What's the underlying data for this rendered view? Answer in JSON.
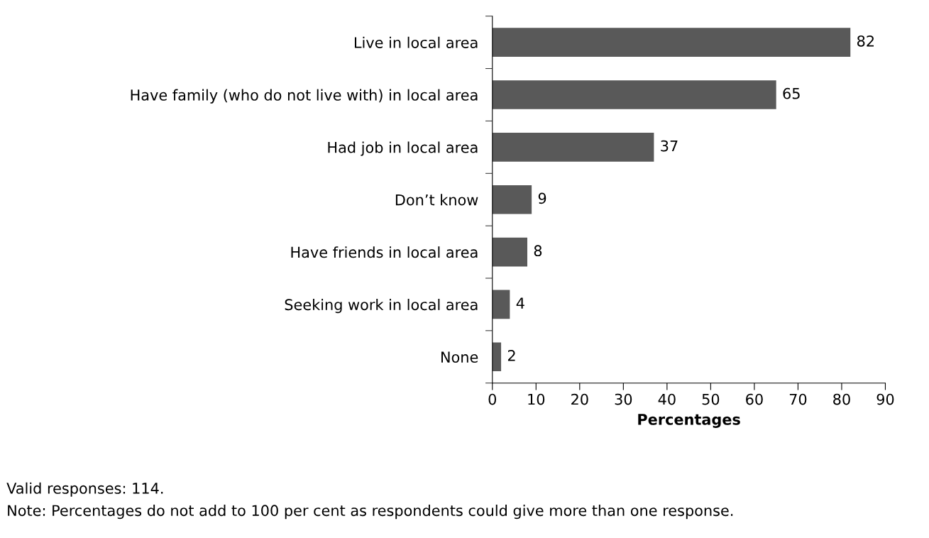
{
  "chart_data": {
    "type": "bar",
    "orientation": "horizontal",
    "categories": [
      "Live in local area",
      "Have family (who do not live with) in local area",
      "Had job in local area",
      "Don’t know",
      "Have friends in local area",
      "Seeking work in local area",
      "None"
    ],
    "values": [
      82,
      65,
      37,
      9,
      8,
      4,
      2
    ],
    "color": "#595959",
    "xlim": [
      0,
      90
    ],
    "xticks": [
      0,
      10,
      20,
      30,
      40,
      50,
      60,
      70,
      80,
      90
    ],
    "xlabel": "Percentages",
    "data_labels": true,
    "grid": false,
    "annotations": [
      "Valid responses: 114.",
      "Note: Percentages do not add to 100 per cent as respondents could give more than one response."
    ]
  }
}
